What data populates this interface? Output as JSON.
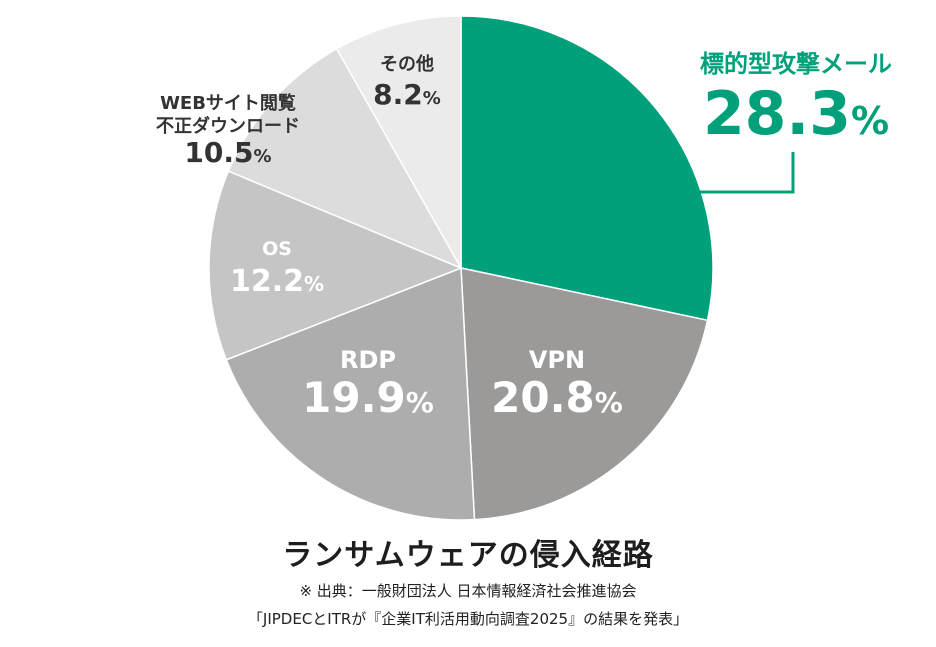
{
  "chart_data": {
    "type": "pie",
    "title": "ランサムウェアの侵入経路",
    "unit": "%",
    "slices": [
      {
        "label": "標的型攻撃メール",
        "value": 28.3,
        "color": "#00a17a"
      },
      {
        "label": "VPN",
        "value": 20.8,
        "color": "#9c9a98"
      },
      {
        "label": "RDP",
        "value": 19.9,
        "color": "#adadad"
      },
      {
        "label": "OS",
        "value": 12.2,
        "color": "#c5c5c5"
      },
      {
        "label": "WEBサイト閲覧\n不正ダウンロード",
        "value": 10.5,
        "color": "#dcdcdc"
      },
      {
        "label": "その他",
        "value": 8.2,
        "color": "#ebebeb"
      }
    ]
  },
  "source": {
    "line1": "※ 出典：一般財団法人 日本情報経済社会推進協会",
    "line2": "「JIPDECとITRが『企業IT利活用動向調査2025』の結果を発表」"
  }
}
